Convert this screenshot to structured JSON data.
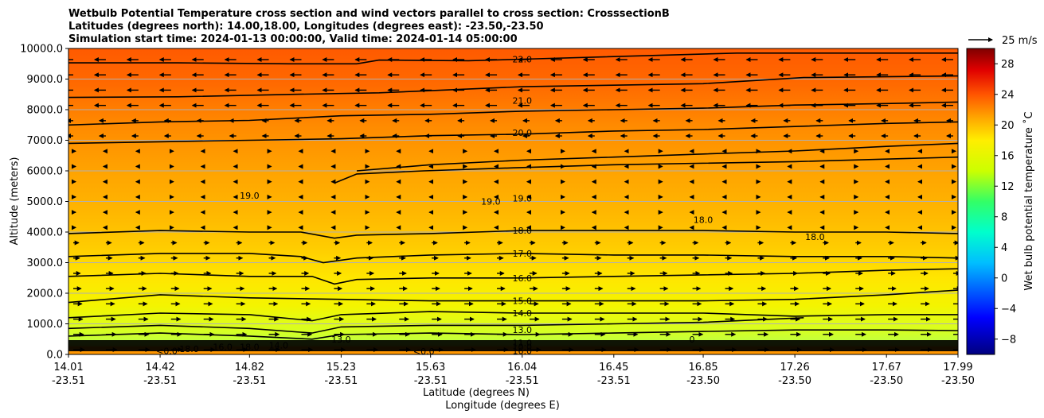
{
  "chart_data": {
    "type": "contour",
    "title_lines": [
      "Wetbulb Potential Temperature cross section and wind vectors parallel to cross section: CrosssectionB",
      "Latitudes (degrees north): 14.00,18.00, Longitudes (degrees east): -23.50,-23.50",
      "Simulation start time: 2024-01-13 00:00:00, Valid time: 2024-01-14 05:00:00"
    ],
    "xlabel": "Latitude (degrees N)",
    "xlabel2": "Longitude (degrees E)",
    "ylabel": "Altitude (meters)",
    "colorbar_label": "Wet bulb potential temperature ˚C",
    "quiver_key": "25 m/s",
    "x_ticks_lat": [
      "14.01",
      "14.42",
      "14.82",
      "15.23",
      "15.63",
      "16.04",
      "16.45",
      "16.85",
      "17.26",
      "17.67",
      "17.99"
    ],
    "x_ticks_lon": [
      "-23.51",
      "-23.51",
      "-23.51",
      "-23.51",
      "-23.51",
      "-23.51",
      "-23.51",
      "-23.50",
      "-23.50",
      "-23.50",
      "-23.50"
    ],
    "y_ticks": [
      "0.0",
      "1000.0",
      "2000.0",
      "3000.0",
      "4000.0",
      "5000.0",
      "6000.0",
      "7000.0",
      "8000.0",
      "9000.0",
      "10000.0"
    ],
    "ylim": [
      0,
      10000
    ],
    "xlim_lat": [
      14.01,
      17.99
    ],
    "colorbar_ticks": [
      "−8",
      "−4",
      "0",
      "4",
      "8",
      "12",
      "16",
      "20",
      "24",
      "28"
    ],
    "colorbar_range": [
      -10,
      30
    ],
    "grid": "horizontal",
    "contours": [
      {
        "level": "22.0",
        "label": "22.0",
        "points": [
          [
            14.01,
            9530
          ],
          [
            14.5,
            9530
          ],
          [
            15,
            9500
          ],
          [
            15.3,
            9500
          ],
          [
            15.4,
            9620
          ],
          [
            15.8,
            9600
          ],
          [
            16.04,
            9650
          ],
          [
            17.0,
            9850
          ],
          [
            17.99,
            9850
          ]
        ]
      },
      {
        "level": "21.0",
        "label": "21.0",
        "points": [
          [
            14.01,
            8400
          ],
          [
            14.5,
            8420
          ],
          [
            15,
            8500
          ],
          [
            15.4,
            8550
          ],
          [
            15.63,
            8620
          ],
          [
            16.04,
            8750
          ],
          [
            16.45,
            8800
          ],
          [
            16.85,
            8850
          ],
          [
            17.3,
            9050
          ],
          [
            17.99,
            9100
          ]
        ]
      },
      {
        "level": "20.0",
        "label": "20.0",
        "points": [
          [
            14.01,
            7500
          ],
          [
            14.42,
            7600
          ],
          [
            14.82,
            7650
          ],
          [
            15.23,
            7800
          ],
          [
            15.63,
            7850
          ],
          [
            16.04,
            7950
          ],
          [
            16.45,
            8000
          ],
          [
            16.85,
            8050
          ],
          [
            17.26,
            8150
          ],
          [
            17.67,
            8200
          ],
          [
            17.99,
            8250
          ]
        ]
      },
      {
        "level": "19.0 upper",
        "label": "19.0",
        "points": [
          [
            14.01,
            6900
          ],
          [
            14.42,
            6950
          ],
          [
            14.82,
            7000
          ],
          [
            15.23,
            7050
          ],
          [
            15.63,
            7150
          ],
          [
            16.04,
            7200
          ],
          [
            16.45,
            7300
          ],
          [
            16.85,
            7350
          ],
          [
            17.26,
            7450
          ],
          [
            17.67,
            7550
          ],
          [
            17.99,
            7600
          ]
        ]
      },
      {
        "level": "18.0 upper",
        "label": "18.0",
        "points": [
          [
            15.3,
            6000
          ],
          [
            15.63,
            6200
          ],
          [
            16.04,
            6350
          ],
          [
            16.45,
            6450
          ],
          [
            16.85,
            6550
          ],
          [
            17.26,
            6650
          ],
          [
            17.67,
            6800
          ],
          [
            17.99,
            6900
          ]
        ]
      },
      {
        "level": "19.0 blob",
        "label": "19.0",
        "points": [
          [
            15.2,
            5600
          ],
          [
            15.3,
            5900
          ],
          [
            15.6,
            6000
          ],
          [
            16.0,
            6100
          ],
          [
            16.45,
            6200
          ],
          [
            17.26,
            6300
          ],
          [
            17.99,
            6450
          ]
        ]
      },
      {
        "level": "18.0",
        "label": "18.0",
        "points": [
          [
            14.01,
            3950
          ],
          [
            14.42,
            4050
          ],
          [
            14.82,
            4000
          ],
          [
            15.05,
            4000
          ],
          [
            15.2,
            3800
          ],
          [
            15.3,
            3900
          ],
          [
            15.63,
            3950
          ],
          [
            16.04,
            4050
          ],
          [
            16.45,
            4050
          ],
          [
            16.85,
            4050
          ],
          [
            17.26,
            4000
          ],
          [
            17.67,
            4000
          ],
          [
            17.99,
            3950
          ]
        ]
      },
      {
        "level": "17.0",
        "label": "17.0",
        "points": [
          [
            14.01,
            3200
          ],
          [
            14.42,
            3300
          ],
          [
            14.82,
            3300
          ],
          [
            15.05,
            3200
          ],
          [
            15.15,
            3000
          ],
          [
            15.3,
            3150
          ],
          [
            15.63,
            3250
          ],
          [
            16.04,
            3300
          ],
          [
            16.45,
            3250
          ],
          [
            16.85,
            3250
          ],
          [
            17.26,
            3200
          ],
          [
            17.67,
            3200
          ],
          [
            17.99,
            3150
          ]
        ]
      },
      {
        "level": "16.0",
        "label": "16.0",
        "points": [
          [
            14.01,
            2550
          ],
          [
            14.42,
            2650
          ],
          [
            14.82,
            2550
          ],
          [
            15.1,
            2550
          ],
          [
            15.2,
            2300
          ],
          [
            15.3,
            2450
          ],
          [
            15.63,
            2500
          ],
          [
            16.04,
            2500
          ],
          [
            16.45,
            2550
          ],
          [
            16.85,
            2600
          ],
          [
            17.26,
            2650
          ],
          [
            17.67,
            2750
          ],
          [
            17.99,
            2800
          ]
        ]
      },
      {
        "level": "15.0",
        "label": "15.0",
        "points": [
          [
            14.01,
            1700
          ],
          [
            14.42,
            1950
          ],
          [
            14.82,
            1850
          ],
          [
            15.23,
            1800
          ],
          [
            15.63,
            1750
          ],
          [
            16.04,
            1750
          ],
          [
            16.45,
            1750
          ],
          [
            16.85,
            1750
          ],
          [
            17.26,
            1800
          ],
          [
            17.67,
            1950
          ],
          [
            17.99,
            2100
          ]
        ]
      },
      {
        "level": "14.0",
        "label": "14.0",
        "points": [
          [
            14.01,
            1200
          ],
          [
            14.42,
            1350
          ],
          [
            14.82,
            1300
          ],
          [
            15.1,
            1100
          ],
          [
            15.23,
            1300
          ],
          [
            15.63,
            1400
          ],
          [
            16.04,
            1350
          ],
          [
            16.45,
            1350
          ],
          [
            16.85,
            1350
          ],
          [
            17.26,
            1250
          ],
          [
            17.67,
            1300
          ],
          [
            17.99,
            1300
          ]
        ]
      },
      {
        "level": "13.0",
        "label": "13.0",
        "points": [
          [
            14.01,
            850
          ],
          [
            14.42,
            950
          ],
          [
            14.82,
            850
          ],
          [
            15.1,
            700
          ],
          [
            15.23,
            900
          ],
          [
            15.63,
            950
          ],
          [
            16.04,
            950
          ],
          [
            16.45,
            1000
          ],
          [
            16.85,
            1050
          ],
          [
            17.3,
            1200
          ]
        ]
      },
      {
        "level": "12.0",
        "label": "12.0",
        "points": [
          [
            14.01,
            600
          ],
          [
            14.42,
            700
          ],
          [
            14.82,
            600
          ],
          [
            15.1,
            500
          ],
          [
            15.23,
            650
          ],
          [
            15.63,
            700
          ],
          [
            16.04,
            650
          ],
          [
            16.45,
            700
          ],
          [
            16.85,
            750
          ],
          [
            17.26,
            800
          ],
          [
            17.67,
            800
          ],
          [
            17.99,
            780
          ]
        ]
      }
    ],
    "contour_labels": [
      {
        "text": "22.0",
        "lat": 16.04,
        "alt": 9650
      },
      {
        "text": "21.0",
        "lat": 16.04,
        "alt": 8300
      },
      {
        "text": "20.0",
        "lat": 16.04,
        "alt": 7250
      },
      {
        "text": "19.0",
        "lat": 14.82,
        "alt": 5200
      },
      {
        "text": "19.0",
        "lat": 15.9,
        "alt": 5000
      },
      {
        "text": "19.0",
        "lat": 16.04,
        "alt": 5100
      },
      {
        "text": "18.0",
        "lat": 16.85,
        "alt": 4400
      },
      {
        "text": "18.0",
        "lat": 17.35,
        "alt": 3850
      },
      {
        "text": "18.0",
        "lat": 16.04,
        "alt": 4050
      },
      {
        "text": "17.0",
        "lat": 16.04,
        "alt": 3300
      },
      {
        "text": "16.0",
        "lat": 16.04,
        "alt": 2500
      },
      {
        "text": "15.0",
        "lat": 16.04,
        "alt": 1750
      },
      {
        "text": "14.0",
        "lat": 16.04,
        "alt": 1350
      },
      {
        "text": "13.0",
        "lat": 16.04,
        "alt": 800
      },
      {
        "text": "13.0",
        "lat": 15.23,
        "alt": 500
      },
      {
        "text": "11.0",
        "lat": 16.04,
        "alt": 380
      },
      {
        "text": "10.0",
        "lat": 16.04,
        "alt": 250
      },
      {
        "text": "16.0",
        "lat": 16.04,
        "alt": 120
      },
      {
        "text": "<0.0",
        "lat": 15.6,
        "alt": 100
      },
      {
        "text": "<0.0",
        "lat": 14.45,
        "alt": 120
      },
      {
        "text": "18.0",
        "lat": 14.55,
        "alt": 180
      },
      {
        "text": "16.0",
        "lat": 14.7,
        "alt": 250
      },
      {
        "text": "18.0",
        "lat": 14.82,
        "alt": 250
      },
      {
        "text": "14.0",
        "lat": 14.95,
        "alt": 300
      },
      {
        "text": "0",
        "lat": 16.8,
        "alt": 500
      }
    ]
  }
}
